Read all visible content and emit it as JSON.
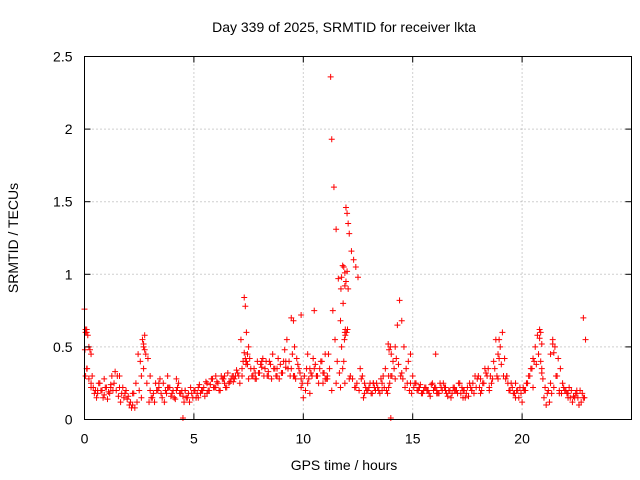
{
  "chart_data": {
    "type": "scatter",
    "title": "Day 339 of 2025, SRMTID for receiver lkta",
    "xlabel": "GPS time / hours",
    "ylabel": "SRMTID / TECUs",
    "xlim": [
      0,
      25
    ],
    "ylim": [
      0,
      2.5
    ],
    "xticks": [
      0,
      5,
      10,
      15,
      20
    ],
    "xtick_labels": [
      "0",
      "5",
      "10",
      "15",
      "20"
    ],
    "yticks": [
      0,
      0.5,
      1,
      1.5,
      2,
      2.5
    ],
    "ytick_labels": [
      "0",
      "0.5",
      "1",
      "1.5",
      "2",
      "2.5"
    ],
    "grid": true,
    "marker": "+",
    "series": [
      {
        "name": "SRMTID",
        "color": "#ff0000",
        "x": [
          0.0,
          0.05,
          0.1,
          0.15,
          0.2,
          0.25,
          0.3,
          0.35,
          0.4,
          0.5,
          0.6,
          0.7,
          0.8,
          0.9,
          1.0,
          1.1,
          1.2,
          1.3,
          1.4,
          1.5,
          1.6,
          1.7,
          1.8,
          1.9,
          2.0,
          2.1,
          2.2,
          2.3,
          2.4,
          2.5,
          2.6,
          2.65,
          2.7,
          2.75,
          2.8,
          2.9,
          3.0,
          3.1,
          3.2,
          3.3,
          3.4,
          3.5,
          3.6,
          3.7,
          3.8,
          3.9,
          4.0,
          4.1,
          4.2,
          4.3,
          4.4,
          4.5,
          4.6,
          4.7,
          4.8,
          4.9,
          5.0,
          5.1,
          5.2,
          5.3,
          5.4,
          5.5,
          5.6,
          5.7,
          5.8,
          5.9,
          6.0,
          6.1,
          6.2,
          6.3,
          6.4,
          6.5,
          6.6,
          6.7,
          6.8,
          6.9,
          7.0,
          7.1,
          7.2,
          7.3,
          7.35,
          7.4,
          7.45,
          7.5,
          7.6,
          7.7,
          7.8,
          7.9,
          8.0,
          8.1,
          8.2,
          8.3,
          8.4,
          8.5,
          8.6,
          8.7,
          8.8,
          8.9,
          9.0,
          9.1,
          9.2,
          9.3,
          9.4,
          9.5,
          9.6,
          9.7,
          9.8,
          9.9,
          10.0,
          10.1,
          10.2,
          10.3,
          10.4,
          10.5,
          10.6,
          10.7,
          10.8,
          10.9,
          11.0,
          11.1,
          11.15,
          11.2,
          11.25,
          11.3,
          11.4,
          11.5,
          11.6,
          11.7,
          11.75,
          11.8,
          11.85,
          11.9,
          11.95,
          12.0,
          12.05,
          12.1,
          12.2,
          12.3,
          12.4,
          12.5,
          12.6,
          12.7,
          12.8,
          12.9,
          13.0,
          13.1,
          13.2,
          13.3,
          13.4,
          13.5,
          13.6,
          13.7,
          13.8,
          13.85,
          13.9,
          13.95,
          14.0,
          14.1,
          14.2,
          14.3,
          14.4,
          14.5,
          14.6,
          14.7,
          14.8,
          14.9,
          15.0,
          15.1,
          15.2,
          15.3,
          15.4,
          15.5,
          15.6,
          15.7,
          15.8,
          15.9,
          16.0,
          16.1,
          16.2,
          16.3,
          16.4,
          16.5,
          16.6,
          16.7,
          16.8,
          16.9,
          17.0,
          17.1,
          17.2,
          17.3,
          17.4,
          17.5,
          17.6,
          17.7,
          17.8,
          17.9,
          18.0,
          18.1,
          18.2,
          18.3,
          18.4,
          18.5,
          18.6,
          18.7,
          18.8,
          18.9,
          19.0,
          19.1,
          19.2,
          19.3,
          19.4,
          19.5,
          19.6,
          19.7,
          19.8,
          19.9,
          20.0,
          20.1,
          20.2,
          20.3,
          20.4,
          20.5,
          20.6,
          20.7,
          20.8,
          20.9,
          21.0,
          21.1,
          21.2,
          21.3,
          21.4,
          21.5,
          21.6,
          21.7,
          21.8,
          21.9,
          22.0,
          22.1,
          22.2,
          22.3,
          22.4,
          22.5,
          22.6,
          22.7,
          22.8,
          22.9,
          0.02,
          0.1,
          0.2,
          0.3,
          0.45,
          0.55,
          0.65,
          0.75,
          0.85,
          0.95,
          1.05,
          1.15,
          1.25,
          1.35,
          1.45,
          1.55,
          1.65,
          1.75,
          1.85,
          1.95,
          2.05,
          2.15,
          2.25,
          2.35,
          2.45,
          2.55,
          2.7,
          2.85,
          2.95,
          3.05,
          3.15,
          3.25,
          3.35,
          3.45,
          3.55,
          3.65,
          3.75,
          3.85,
          3.95,
          4.05,
          4.15,
          4.25,
          4.35,
          4.45,
          4.55,
          4.65,
          4.75,
          4.85,
          4.95,
          5.05,
          5.15,
          5.25,
          5.35,
          5.45,
          5.55,
          5.65,
          5.75,
          5.85,
          5.95,
          6.05,
          6.15,
          6.25,
          6.35,
          6.45,
          6.55,
          6.65,
          6.75,
          6.85,
          6.95,
          7.05,
          7.15,
          7.25,
          7.38,
          7.55,
          7.65,
          7.75,
          7.85,
          7.95,
          8.05,
          8.15,
          8.25,
          8.35,
          8.45,
          8.55,
          8.65,
          8.75,
          8.85,
          8.95,
          9.05,
          9.15,
          9.25,
          9.35,
          9.45,
          9.55,
          9.65,
          9.75,
          9.85,
          9.95,
          10.05,
          10.15,
          10.25,
          10.35,
          10.45,
          10.55,
          10.65,
          10.75,
          10.85,
          10.95,
          11.05,
          11.35,
          11.45,
          11.55,
          11.65,
          11.72,
          11.82,
          11.92,
          12.15,
          12.25,
          12.35,
          12.45,
          12.55,
          12.65,
          12.75,
          12.85,
          12.95,
          13.05,
          13.15,
          13.25,
          13.35,
          13.45,
          13.55,
          13.65,
          13.75,
          13.88,
          14.05,
          14.15,
          14.25,
          14.35,
          14.45,
          14.55,
          14.65,
          14.75,
          14.85,
          14.95,
          15.05,
          15.15,
          15.25,
          15.35,
          15.45,
          15.55,
          15.65,
          15.75,
          15.85,
          15.95,
          16.05,
          16.15,
          16.25,
          16.35,
          16.45,
          16.55,
          16.65,
          16.75,
          16.85,
          16.95,
          17.05,
          17.15,
          17.25,
          17.35,
          17.45,
          17.55,
          17.65,
          17.75,
          17.85,
          17.95,
          18.05,
          18.15,
          18.25,
          18.35,
          18.45,
          18.55,
          18.65,
          18.75,
          18.85,
          18.95,
          19.05,
          19.15,
          19.25,
          19.35,
          19.45,
          19.55,
          19.65,
          19.75,
          19.85,
          19.95,
          20.05,
          20.15,
          20.25,
          20.35,
          20.45,
          20.55,
          20.65,
          20.75,
          20.85,
          20.95,
          21.05,
          21.15,
          21.25,
          21.35,
          21.45,
          21.55,
          21.65,
          21.75,
          21.85,
          21.95,
          22.05,
          22.15,
          22.25,
          22.35,
          22.45,
          22.55,
          22.65,
          22.75,
          22.85,
          0.05,
          0.12,
          0.3,
          0.6,
          0.9,
          1.2,
          1.6,
          2.2,
          2.6,
          3.0,
          3.4,
          3.8,
          4.2,
          4.6,
          5.2,
          5.6,
          6.0,
          6.4,
          6.8,
          7.2,
          7.5,
          7.8,
          8.1,
          8.4,
          8.8,
          9.2,
          9.6,
          9.9,
          10.3,
          10.6,
          10.9,
          11.1,
          11.3,
          11.5,
          11.7,
          11.9,
          12.1,
          12.4,
          12.8,
          13.2,
          13.6,
          13.9,
          14.2,
          14.5,
          14.9,
          15.3,
          15.7,
          16.1,
          16.5,
          16.9,
          17.3,
          17.7,
          18.1,
          18.5,
          18.9,
          19.3,
          19.7,
          20.1,
          20.5,
          20.9,
          21.3,
          21.7,
          22.1,
          22.5,
          22.8,
          4.5,
          14.0,
          9.45,
          9.55,
          9.9,
          10.2,
          10.5,
          11.0,
          11.9,
          11.95,
          12.0,
          11.85,
          11.8,
          12.05,
          11.75,
          11.9,
          12.02,
          11.88,
          11.92,
          11.98,
          13.92,
          13.98,
          14.02,
          7.3,
          7.35,
          7.4,
          7.45,
          2.7,
          2.75,
          0.05,
          0.1,
          20.8,
          20.85,
          20.9,
          21.4,
          21.45,
          18.95,
          16.05
        ],
        "y": [
          0.76,
          0.6,
          0.62,
          0.58,
          0.5,
          0.48,
          0.45,
          0.3,
          0.22,
          0.2,
          0.18,
          0.25,
          0.2,
          0.17,
          0.22,
          0.19,
          0.24,
          0.2,
          0.33,
          0.3,
          0.22,
          0.18,
          0.15,
          0.2,
          0.16,
          0.12,
          0.1,
          0.08,
          0.12,
          0.2,
          0.3,
          0.55,
          0.5,
          0.58,
          0.45,
          0.42,
          0.3,
          0.15,
          0.12,
          0.2,
          0.22,
          0.18,
          0.25,
          0.2,
          0.3,
          0.22,
          0.18,
          0.15,
          0.2,
          0.25,
          0.18,
          0.16,
          0.2,
          0.15,
          0.12,
          0.18,
          0.2,
          0.15,
          0.22,
          0.18,
          0.2,
          0.16,
          0.25,
          0.2,
          0.28,
          0.22,
          0.3,
          0.25,
          0.2,
          0.28,
          0.3,
          0.22,
          0.25,
          0.28,
          0.26,
          0.3,
          0.32,
          0.25,
          0.3,
          0.84,
          0.78,
          0.6,
          0.45,
          0.5,
          0.35,
          0.3,
          0.28,
          0.4,
          0.32,
          0.36,
          0.3,
          0.4,
          0.33,
          0.38,
          0.45,
          0.35,
          0.3,
          0.28,
          0.32,
          0.4,
          0.36,
          0.35,
          0.3,
          0.45,
          0.5,
          0.42,
          0.35,
          0.22,
          0.15,
          0.2,
          0.25,
          0.18,
          0.3,
          0.35,
          0.3,
          0.25,
          0.4,
          0.32,
          0.28,
          0.3,
          0.45,
          0.35,
          2.36,
          1.93,
          1.6,
          1.31,
          0.97,
          0.68,
          0.5,
          0.35,
          0.4,
          0.6,
          1.46,
          1.42,
          1.35,
          1.28,
          1.16,
          1.1,
          1.05,
          0.98,
          0.35,
          0.3,
          0.25,
          0.2,
          0.22,
          0.18,
          0.25,
          0.2,
          0.22,
          0.18,
          0.25,
          0.22,
          0.2,
          0.18,
          0.22,
          0.25,
          0.3,
          0.4,
          0.5,
          0.65,
          0.82,
          0.68,
          0.5,
          0.35,
          0.4,
          0.45,
          0.3,
          0.25,
          0.2,
          0.22,
          0.18,
          0.2,
          0.22,
          0.2,
          0.16,
          0.25,
          0.22,
          0.2,
          0.18,
          0.22,
          0.25,
          0.2,
          0.16,
          0.2,
          0.18,
          0.22,
          0.2,
          0.25,
          0.18,
          0.2,
          0.15,
          0.22,
          0.25,
          0.2,
          0.18,
          0.22,
          0.3,
          0.28,
          0.25,
          0.35,
          0.3,
          0.2,
          0.25,
          0.4,
          0.55,
          0.45,
          0.5,
          0.6,
          0.42,
          0.3,
          0.2,
          0.25,
          0.18,
          0.15,
          0.2,
          0.22,
          0.12,
          0.2,
          0.25,
          0.3,
          0.35,
          0.42,
          0.5,
          0.58,
          0.62,
          0.35,
          0.15,
          0.1,
          0.2,
          0.45,
          0.55,
          0.5,
          0.3,
          0.2,
          0.18,
          0.22,
          0.2,
          0.18,
          0.15,
          0.12,
          0.15,
          0.18,
          0.1,
          0.12,
          0.7,
          0.55,
          0.48,
          0.35,
          0.28,
          0.22,
          0.18,
          0.15,
          0.25,
          0.2,
          0.15,
          0.22,
          0.14,
          0.18,
          0.3,
          0.25,
          0.2,
          0.16,
          0.12,
          0.22,
          0.18,
          0.14,
          0.1,
          0.08,
          0.18,
          0.25,
          0.45,
          0.4,
          0.35,
          0.25,
          0.12,
          0.15,
          0.18,
          0.25,
          0.2,
          0.28,
          0.15,
          0.12,
          0.18,
          0.22,
          0.16,
          0.2,
          0.14,
          0.22,
          0.18,
          0.2,
          0.12,
          0.15,
          0.18,
          0.22,
          0.15,
          0.2,
          0.18,
          0.24,
          0.2,
          0.22,
          0.26,
          0.2,
          0.24,
          0.28,
          0.22,
          0.26,
          0.2,
          0.3,
          0.28,
          0.22,
          0.32,
          0.26,
          0.3,
          0.28,
          0.34,
          0.3,
          0.55,
          0.4,
          0.38,
          0.42,
          0.3,
          0.35,
          0.28,
          0.32,
          0.38,
          0.42,
          0.35,
          0.3,
          0.4,
          0.28,
          0.35,
          0.3,
          0.42,
          0.38,
          0.32,
          0.48,
          0.55,
          0.4,
          0.35,
          0.3,
          0.28,
          0.38,
          0.32,
          0.25,
          0.3,
          0.35,
          0.28,
          0.32,
          0.42,
          0.38,
          0.3,
          0.35,
          0.4,
          0.32,
          0.28,
          0.75,
          0.55,
          0.4,
          0.32,
          0.9,
          0.8,
          0.62,
          0.3,
          0.28,
          0.22,
          0.25,
          0.2,
          0.28,
          0.15,
          0.22,
          0.2,
          0.25,
          0.18,
          0.22,
          0.25,
          0.2,
          0.28,
          0.3,
          0.35,
          0.52,
          0.3,
          0.35,
          0.42,
          0.38,
          0.3,
          0.28,
          0.22,
          0.25,
          0.2,
          0.18,
          0.22,
          0.25,
          0.2,
          0.24,
          0.18,
          0.22,
          0.2,
          0.18,
          0.24,
          0.2,
          0.22,
          0.18,
          0.25,
          0.2,
          0.22,
          0.18,
          0.2,
          0.15,
          0.22,
          0.2,
          0.18,
          0.25,
          0.22,
          0.2,
          0.18,
          0.16,
          0.22,
          0.25,
          0.3,
          0.28,
          0.22,
          0.2,
          0.25,
          0.32,
          0.35,
          0.3,
          0.28,
          0.35,
          0.3,
          0.42,
          0.38,
          0.3,
          0.28,
          0.25,
          0.2,
          0.22,
          0.18,
          0.2,
          0.15,
          0.18,
          0.22,
          0.2,
          0.25,
          0.3,
          0.35,
          0.4,
          0.38,
          0.45,
          0.4,
          0.28,
          0.22,
          0.18,
          0.12,
          0.18,
          0.22,
          0.3,
          0.42,
          0.35,
          0.25,
          0.2,
          0.18,
          0.22,
          0.2,
          0.16,
          0.18,
          0.15,
          0.2,
          0.18,
          0.15,
          0.3,
          0.35,
          0.25,
          0.2,
          0.28,
          0.22,
          0.3,
          0.18,
          0.15,
          0.2,
          0.25,
          0.22,
          0.28,
          0.2,
          0.15,
          0.18,
          0.22,
          0.25,
          0.3,
          0.35,
          0.28,
          0.32,
          0.4,
          0.3,
          0.35,
          0.4,
          0.3,
          0.28,
          0.35,
          0.3,
          0.25,
          0.28,
          0.2,
          0.25,
          0.22,
          0.25,
          0.28,
          0.22,
          0.18,
          0.25,
          0.2,
          0.3,
          0.28,
          0.32,
          0.25,
          0.22,
          0.2,
          0.18,
          0.22,
          0.2,
          0.15,
          0.2,
          0.18,
          0.22,
          0.28,
          0.3,
          0.25,
          0.2,
          0.22,
          0.32,
          0.25,
          0.18,
          0.15,
          0.2,
          0.15,
          0.01,
          0.01,
          0.7,
          0.68,
          0.72,
          0.45,
          0.75,
          0.45,
          0.92,
          0.95,
          1.02,
          1.05,
          1.06,
          0.9,
          0.98,
          1.01,
          0.62,
          0.55,
          0.58,
          0.6,
          0.48,
          0.5,
          0.45,
          0.46,
          0.42,
          0.4,
          0.38,
          0.52,
          0.48,
          0.62,
          0.6,
          0.56,
          0.6,
          0.52,
          0.52,
          0.46,
          0.55,
          0.45
        ]
      }
    ]
  }
}
